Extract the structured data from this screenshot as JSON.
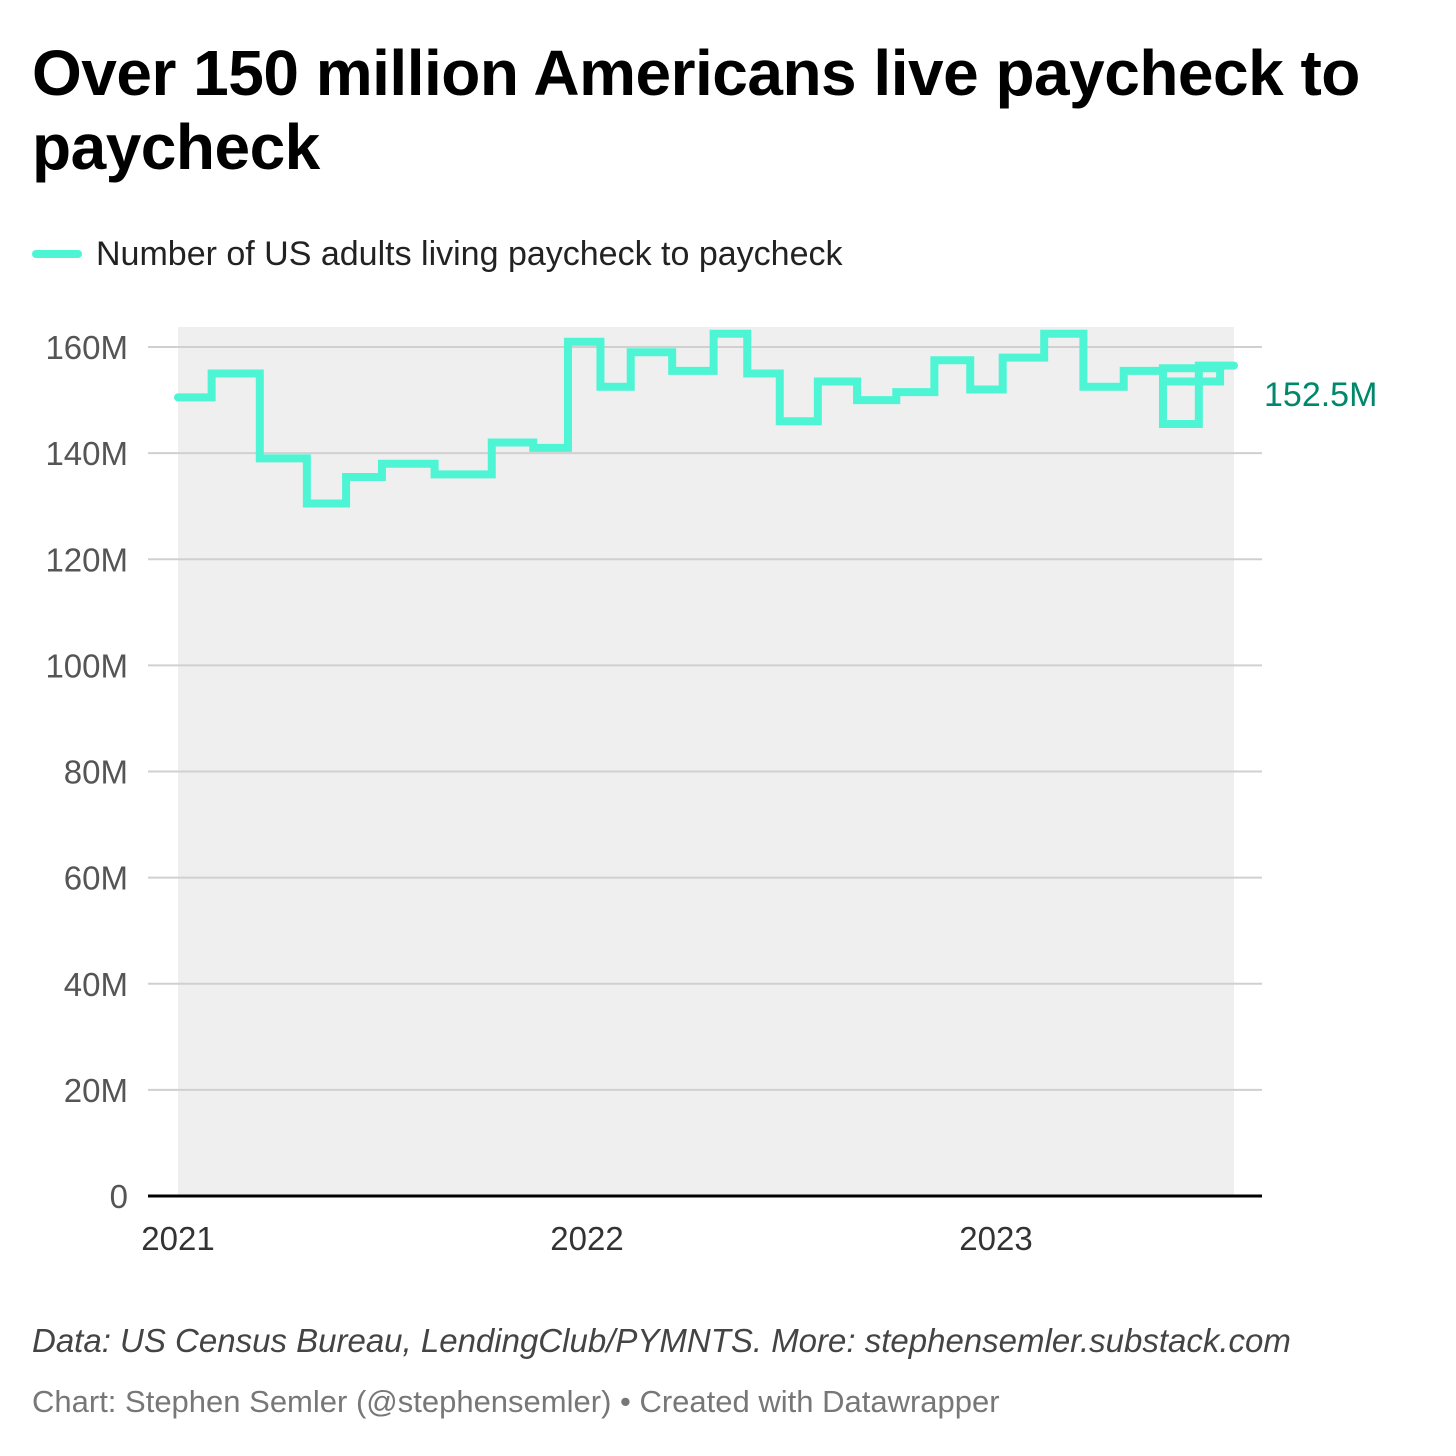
{
  "chart_data": {
    "type": "line",
    "title": "Over 150 million Americans live paycheck to paycheck",
    "series": [
      {
        "name": "Number of US adults living paycheck to paycheck",
        "color": "#4ef5d4",
        "x": [
          "2021-01-01",
          "2021-01-31",
          "2021-03-15",
          "2021-04-26",
          "2021-05-31",
          "2021-07-02",
          "2021-08-18",
          "2021-10-08",
          "2021-11-14",
          "2021-12-15",
          "2022-01-13",
          "2022-02-09",
          "2022-03-18",
          "2022-04-24",
          "2022-05-24",
          "2022-06-22",
          "2022-07-26",
          "2022-08-30",
          "2022-10-04",
          "2022-11-07",
          "2022-12-09",
          "2023-01-07",
          "2023-02-13",
          "2023-03-20",
          "2023-04-25",
          "2023-05-30",
          "2023-07-20"
        ],
        "y": [
          150.5,
          155.0,
          139.0,
          130.5,
          135.5,
          138.0,
          136.0,
          142.0,
          141.0,
          161.0,
          152.5,
          159.0,
          155.5,
          162.5,
          155.0,
          146.0,
          153.5,
          150.0,
          151.5,
          157.5,
          152.0,
          158.0,
          162.5,
          152.5,
          155.5,
          153.5,
          156.0
        ],
        "step_extra": [
          {
            "x": "2023-05-30",
            "y": 145.5
          },
          {
            "x": "2023-07-01",
            "y": 156.5
          },
          {
            "x": "2023-09-09",
            "y": 152.5
          }
        ]
      }
    ],
    "xticks": [
      "2021",
      "2022",
      "2023"
    ],
    "yticks": [
      "0",
      "20M",
      "40M",
      "60M",
      "80M",
      "100M",
      "120M",
      "140M",
      "160M"
    ],
    "ylim": [
      0,
      160
    ],
    "y_unit": "millions",
    "last_value_label": "152.5M",
    "last_value_color": "#00876c",
    "area_fill": "#efefef",
    "grid": true,
    "legend": "top-left"
  },
  "legend": {
    "label": "Number of US adults living paycheck to paycheck"
  },
  "footer": {
    "source": "Data: US Census Bureau, LendingClub/PYMNTS. More: stephensemler.substack.com",
    "credit": "Chart: Stephen Semler (@stephensemler) • Created with Datawrapper"
  }
}
